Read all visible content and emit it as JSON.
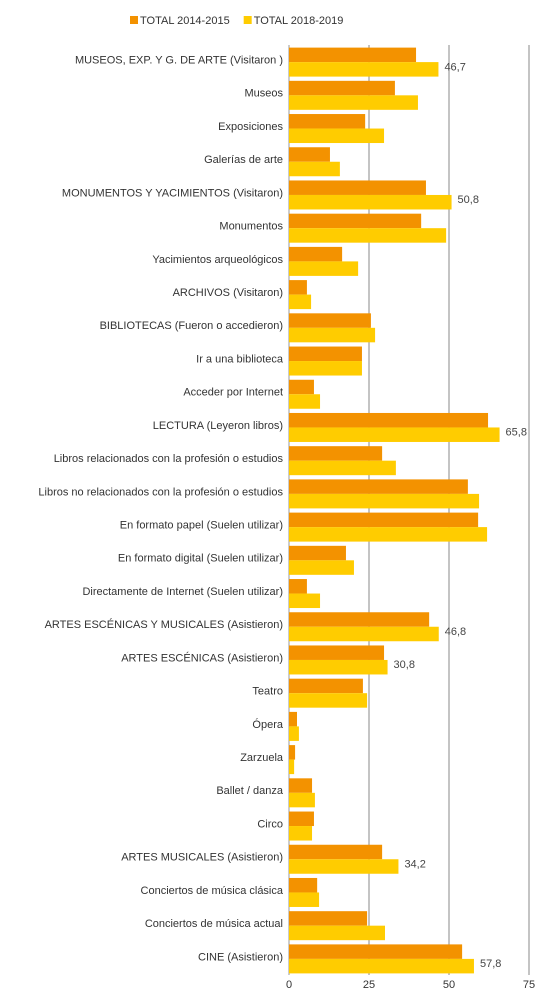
{
  "chart_data": {
    "type": "bar",
    "orientation": "horizontal",
    "categories": [
      "MUSEOS, EXP. Y G. DE ARTE (Visitaron )",
      "Museos",
      "Exposiciones",
      "Galerías de arte",
      "MONUMENTOS Y YACIMIENTOS (Visitaron)",
      "Monumentos",
      "Yacimientos arqueológicos",
      "ARCHIVOS (Visitaron)",
      "BIBLIOTECAS (Fueron o accedieron)",
      "Ir a una biblioteca",
      "Acceder por Internet",
      "LECTURA (Leyeron libros)",
      "Libros relacionados con la profesión o estudios",
      "Libros no relacionados con la profesión o estudios",
      "En formato papel (Suelen utilizar)",
      "En formato digital (Suelen utilizar)",
      "Directamente de Internet (Suelen utilizar)",
      "ARTES ESCÉNICAS Y MUSICALES (Asistieron)",
      "ARTES ESCÉNICAS (Asistieron)",
      "Teatro",
      "Ópera",
      "Zarzuela",
      "Ballet / danza",
      "Circo",
      "ARTES MUSICALES (Asistieron)",
      "Conciertos de música clásica",
      "Conciertos de música actual",
      "CINE (Asistieron)"
    ],
    "series": [
      {
        "name": "TOTAL 2014-2015",
        "color": "#f39200",
        "values": [
          39.7,
          33.1,
          23.8,
          12.8,
          42.8,
          41.3,
          16.6,
          5.6,
          25.6,
          22.8,
          7.8,
          62.2,
          29.1,
          55.9,
          59.1,
          17.8,
          5.6,
          43.8,
          29.7,
          23.1,
          2.5,
          1.9,
          7.2,
          7.8,
          29.1,
          8.8,
          24.4,
          54.1
        ]
      },
      {
        "name": "TOTAL 2018-2019",
        "color": "#ffcc00",
        "values": [
          46.7,
          40.3,
          29.7,
          15.9,
          50.8,
          49.1,
          21.6,
          6.9,
          26.9,
          22.8,
          9.7,
          65.8,
          33.4,
          59.4,
          61.9,
          20.3,
          9.7,
          46.8,
          30.8,
          24.4,
          3.1,
          1.6,
          8.1,
          7.2,
          34.2,
          9.4,
          30.0,
          57.8
        ],
        "value_labels": [
          "46,7",
          null,
          null,
          null,
          "50,8",
          null,
          null,
          null,
          null,
          null,
          null,
          "65,8",
          null,
          null,
          null,
          null,
          null,
          "46,8",
          "30,8",
          null,
          null,
          null,
          null,
          null,
          "34,2",
          null,
          null,
          "57,8"
        ]
      }
    ],
    "xlim": [
      0,
      75
    ],
    "xticks": [
      0,
      25,
      50,
      75
    ],
    "grid": true,
    "legend": "top"
  }
}
